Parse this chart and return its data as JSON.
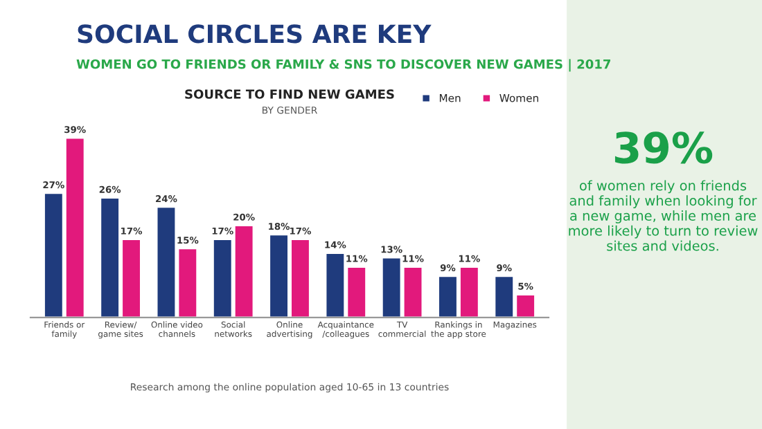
{
  "chart_data": {
    "type": "bar",
    "title": "SOCIAL CIRCLES ARE KEY",
    "subtitle": "WOMEN GO TO FRIENDS OR FAMILY & SNS TO DISCOVER NEW GAMES | 2017",
    "categories": [
      "Friends or\nfamily",
      "Review/\ngame sites",
      "Online video\nchannels",
      "Social\nnetworks",
      "Online\nadvertising",
      "Acquaintance\n/colleagues",
      "TV\ncommercial",
      "Rankings in\nthe app store",
      "Magazines"
    ],
    "series": [
      {
        "name": "Men",
        "color": "#1f3b7d",
        "values": [
          27,
          26,
          24,
          17,
          18,
          14,
          13,
          9,
          9
        ],
        "value_labels": [
          "27%",
          "26%",
          "24%",
          "17%",
          "18%",
          "14%",
          "13%",
          "9%",
          "9%"
        ]
      },
      {
        "name": "Women",
        "color": "#e2197c",
        "values": [
          39,
          17,
          15,
          20,
          17,
          11,
          11,
          11,
          5
        ],
        "value_labels": [
          "39%",
          "17%",
          "15%",
          "20%",
          "17%",
          "11%",
          "11%",
          "11%",
          "5%"
        ]
      }
    ],
    "legend": "top right",
    "annotations": [
      "SOURCE TO FIND NEW GAMES",
      "BY GENDER",
      "Research among the online population aged 10-65 in 13 countries",
      "39%",
      "of women rely on friends and family when looking for a new game, while men are more likely to turn to review sites and videos."
    ]
  }
}
